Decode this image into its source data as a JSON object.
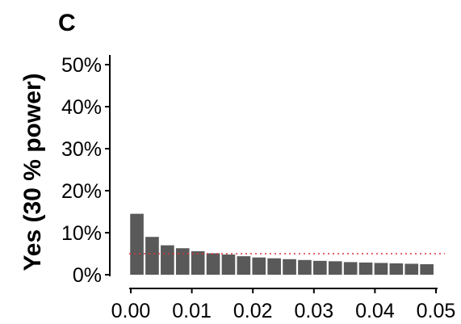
{
  "panel_label": "C",
  "colors": {
    "bar": "#595959",
    "reference_line": "#e0303a",
    "axis": "#000000"
  },
  "chart_data": {
    "type": "bar",
    "title": "",
    "xlabel": "",
    "ylabel": "Yes (30 % power)",
    "x": [
      0.001,
      0.0035,
      0.006,
      0.0085,
      0.011,
      0.0135,
      0.016,
      0.0185,
      0.021,
      0.0235,
      0.026,
      0.0285,
      0.031,
      0.0335,
      0.036,
      0.0385,
      0.041,
      0.0435,
      0.046,
      0.0485
    ],
    "values": [
      14.5,
      9.0,
      7.0,
      6.3,
      5.6,
      5.1,
      4.8,
      4.4,
      4.1,
      3.9,
      3.7,
      3.5,
      3.3,
      3.2,
      3.0,
      2.9,
      2.8,
      2.7,
      2.6,
      2.5
    ],
    "bar_width": 0.0022,
    "xlim": [
      0.0,
      0.05
    ],
    "ylim": [
      0,
      50
    ],
    "x_ticks": [
      0.0,
      0.01,
      0.02,
      0.03,
      0.04,
      0.05
    ],
    "x_tick_labels": [
      "0.00",
      "0.01",
      "0.02",
      "0.03",
      "0.04",
      "0.05"
    ],
    "y_ticks": [
      0,
      10,
      20,
      30,
      40,
      50
    ],
    "y_tick_labels": [
      "0%",
      "10%",
      "20%",
      "30%",
      "40%",
      "50%"
    ],
    "reference_line": {
      "y": 5,
      "style": "dotted"
    },
    "grid": false,
    "legend": "none"
  }
}
